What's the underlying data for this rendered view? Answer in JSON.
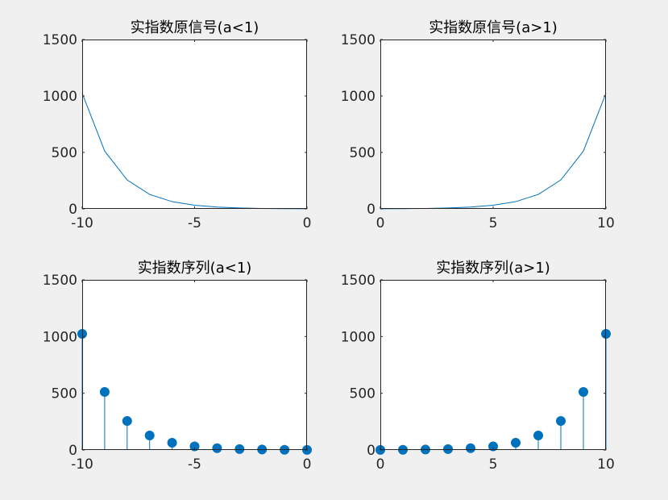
{
  "figure": {
    "background": "#f0f0f0",
    "series_color": "#0072bd"
  },
  "chart_data": [
    {
      "type": "line",
      "title": "实指数原信号(a<1)",
      "xlabel": "",
      "ylabel": "",
      "xlim": [
        -10,
        0
      ],
      "ylim": [
        0,
        1500
      ],
      "xticks": [
        -10,
        -5,
        0
      ],
      "xtick_labels": [
        "-10",
        "-5",
        "0"
      ],
      "yticks": [
        0,
        500,
        1000,
        1500
      ],
      "ytick_labels": [
        "0",
        "500",
        "1000",
        "1500"
      ],
      "grid": false,
      "legend": "none",
      "x": [
        -10,
        -9,
        -8,
        -7,
        -6,
        -5,
        -4,
        -3,
        -2,
        -1,
        0
      ],
      "values": [
        1024,
        512,
        256,
        128,
        64,
        32,
        16,
        8,
        4,
        2,
        1
      ]
    },
    {
      "type": "line",
      "title": "实指数原信号(a>1)",
      "xlabel": "",
      "ylabel": "",
      "xlim": [
        0,
        10
      ],
      "ylim": [
        0,
        1500
      ],
      "xticks": [
        0,
        5,
        10
      ],
      "xtick_labels": [
        "0",
        "5",
        "10"
      ],
      "yticks": [
        0,
        500,
        1000,
        1500
      ],
      "ytick_labels": [
        "0",
        "500",
        "1000",
        "1500"
      ],
      "grid": false,
      "legend": "none",
      "x": [
        0,
        1,
        2,
        3,
        4,
        5,
        6,
        7,
        8,
        9,
        10
      ],
      "values": [
        1,
        2,
        4,
        8,
        16,
        32,
        64,
        128,
        256,
        512,
        1024
      ]
    },
    {
      "type": "stem",
      "title": "实指数序列(a<1)",
      "xlabel": "",
      "ylabel": "",
      "xlim": [
        -10,
        0
      ],
      "ylim": [
        0,
        1500
      ],
      "xticks": [
        -10,
        -5,
        0
      ],
      "xtick_labels": [
        "-10",
        "-5",
        "0"
      ],
      "yticks": [
        0,
        500,
        1000,
        1500
      ],
      "ytick_labels": [
        "0",
        "500",
        "1000",
        "1500"
      ],
      "grid": false,
      "legend": "none",
      "x": [
        -10,
        -9,
        -8,
        -7,
        -6,
        -5,
        -4,
        -3,
        -2,
        -1,
        0
      ],
      "values": [
        1024,
        512,
        256,
        128,
        64,
        32,
        16,
        8,
        4,
        2,
        1
      ]
    },
    {
      "type": "stem",
      "title": "实指数序列(a>1)",
      "xlabel": "",
      "ylabel": "",
      "xlim": [
        0,
        10
      ],
      "ylim": [
        0,
        1500
      ],
      "xticks": [
        0,
        5,
        10
      ],
      "xtick_labels": [
        "0",
        "5",
        "10"
      ],
      "yticks": [
        0,
        500,
        1000,
        1500
      ],
      "ytick_labels": [
        "0",
        "500",
        "1000",
        "1500"
      ],
      "grid": false,
      "legend": "none",
      "x": [
        0,
        1,
        2,
        3,
        4,
        5,
        6,
        7,
        8,
        9,
        10
      ],
      "values": [
        1,
        2,
        4,
        8,
        16,
        32,
        64,
        128,
        256,
        512,
        1024
      ]
    }
  ]
}
